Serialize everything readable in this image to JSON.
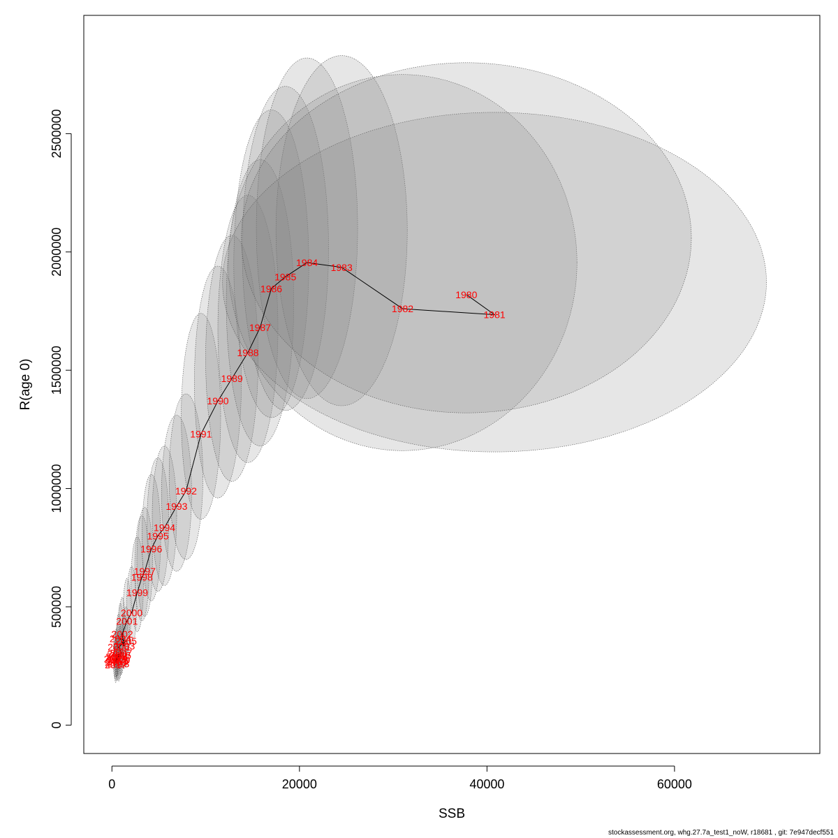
{
  "footer": "stockassessment.org, whg.27.7a_test1_noW, r18681 , git: 7e947decf551",
  "chart_data": {
    "type": "scatter",
    "title": "",
    "xlabel": "SSB",
    "ylabel": "R(age 0)",
    "xlim": [
      -3000,
      75500
    ],
    "ylim": [
      -120000,
      3000000
    ],
    "xticks": [
      0,
      20000,
      40000,
      60000
    ],
    "yticks": [
      0,
      500000,
      1000000,
      1500000,
      2000000,
      2500000
    ],
    "grid": false,
    "line_color": "#000000",
    "label_color": "#ff0000",
    "ellipse_fill": "#808080",
    "points": [
      {
        "year": "1980",
        "ssb": 37800,
        "r": 1820000,
        "sd_ssb": 12000,
        "r_lo": 1320000,
        "r_hi": 2800000
      },
      {
        "year": "1981",
        "ssb": 40800,
        "r": 1735000,
        "sd_ssb": 14500,
        "r_lo": 1155000,
        "r_hi": 2590000
      },
      {
        "year": "1982",
        "ssb": 31000,
        "r": 1760000,
        "sd_ssb": 9300,
        "r_lo": 1160000,
        "r_hi": 2750000
      },
      {
        "year": "1983",
        "ssb": 24500,
        "r": 1935000,
        "sd_ssb": 3500,
        "r_lo": 1350000,
        "r_hi": 2830000
      },
      {
        "year": "1984",
        "ssb": 20800,
        "r": 1955000,
        "sd_ssb": 2700,
        "r_lo": 1380000,
        "r_hi": 2820000
      },
      {
        "year": "1985",
        "ssb": 18500,
        "r": 1895000,
        "sd_ssb": 2300,
        "r_lo": 1330000,
        "r_hi": 2700000
      },
      {
        "year": "1986",
        "ssb": 17000,
        "r": 1845000,
        "sd_ssb": 2000,
        "r_lo": 1300000,
        "r_hi": 2600000
      },
      {
        "year": "1987",
        "ssb": 15800,
        "r": 1680000,
        "sd_ssb": 1800,
        "r_lo": 1180000,
        "r_hi": 2390000
      },
      {
        "year": "1988",
        "ssb": 14500,
        "r": 1575000,
        "sd_ssb": 1600,
        "r_lo": 1110000,
        "r_hi": 2240000
      },
      {
        "year": "1989",
        "ssb": 12800,
        "r": 1465000,
        "sd_ssb": 1400,
        "r_lo": 1030000,
        "r_hi": 2070000
      },
      {
        "year": "1990",
        "ssb": 11300,
        "r": 1370000,
        "sd_ssb": 1250,
        "r_lo": 960000,
        "r_hi": 1940000
      },
      {
        "year": "1991",
        "ssb": 9500,
        "r": 1230000,
        "sd_ssb": 1050,
        "r_lo": 870000,
        "r_hi": 1740000
      },
      {
        "year": "1992",
        "ssb": 7900,
        "r": 990000,
        "sd_ssb": 900,
        "r_lo": 700000,
        "r_hi": 1400000
      },
      {
        "year": "1993",
        "ssb": 6900,
        "r": 925000,
        "sd_ssb": 800,
        "r_lo": 650000,
        "r_hi": 1310000
      },
      {
        "year": "1994",
        "ssb": 5600,
        "r": 835000,
        "sd_ssb": 650,
        "r_lo": 590000,
        "r_hi": 1180000
      },
      {
        "year": "1995",
        "ssb": 4900,
        "r": 800000,
        "sd_ssb": 580,
        "r_lo": 565000,
        "r_hi": 1130000
      },
      {
        "year": "1996",
        "ssb": 4200,
        "r": 745000,
        "sd_ssb": 500,
        "r_lo": 525000,
        "r_hi": 1060000
      },
      {
        "year": "1997",
        "ssb": 3500,
        "r": 650000,
        "sd_ssb": 420,
        "r_lo": 460000,
        "r_hi": 920000
      },
      {
        "year": "1998",
        "ssb": 3200,
        "r": 625000,
        "sd_ssb": 380,
        "r_lo": 440000,
        "r_hi": 885000
      },
      {
        "year": "1999",
        "ssb": 2700,
        "r": 560000,
        "sd_ssb": 330,
        "r_lo": 395000,
        "r_hi": 795000
      },
      {
        "year": "2000",
        "ssb": 2100,
        "r": 475000,
        "sd_ssb": 260,
        "r_lo": 335000,
        "r_hi": 670000
      },
      {
        "year": "2001",
        "ssb": 1600,
        "r": 440000,
        "sd_ssb": 210,
        "r_lo": 310000,
        "r_hi": 620000
      },
      {
        "year": "2002",
        "ssb": 1100,
        "r": 385000,
        "sd_ssb": 160,
        "r_lo": 275000,
        "r_hi": 540000
      },
      {
        "year": "2003",
        "ssb": 1300,
        "r": 335000,
        "sd_ssb": 170,
        "r_lo": 240000,
        "r_hi": 470000
      },
      {
        "year": "2004",
        "ssb": 900,
        "r": 365000,
        "sd_ssb": 140,
        "r_lo": 260000,
        "r_hi": 515000
      },
      {
        "year": "2005",
        "ssb": 1500,
        "r": 355000,
        "sd_ssb": 190,
        "r_lo": 250000,
        "r_hi": 500000
      },
      {
        "year": "2006",
        "ssb": 700,
        "r": 330000,
        "sd_ssb": 120,
        "r_lo": 235000,
        "r_hi": 470000
      },
      {
        "year": "2007",
        "ssb": 1000,
        "r": 305000,
        "sd_ssb": 140,
        "r_lo": 215000,
        "r_hi": 430000
      },
      {
        "year": "2008",
        "ssb": 500,
        "r": 290000,
        "sd_ssb": 100,
        "r_lo": 205000,
        "r_hi": 410000
      },
      {
        "year": "2009",
        "ssb": 800,
        "r": 275000,
        "sd_ssb": 120,
        "r_lo": 195000,
        "r_hi": 390000
      },
      {
        "year": "2010",
        "ssb": 400,
        "r": 265000,
        "sd_ssb": 90,
        "r_lo": 190000,
        "r_hi": 375000
      },
      {
        "year": "2011",
        "ssb": 600,
        "r": 300000,
        "sd_ssb": 100,
        "r_lo": 210000,
        "r_hi": 425000
      },
      {
        "year": "2012",
        "ssb": 300,
        "r": 280000,
        "sd_ssb": 80,
        "r_lo": 200000,
        "r_hi": 395000
      },
      {
        "year": "2013",
        "ssb": 700,
        "r": 260000,
        "sd_ssb": 110,
        "r_lo": 185000,
        "r_hi": 370000
      },
      {
        "year": "2014",
        "ssb": 500,
        "r": 285000,
        "sd_ssb": 90,
        "r_lo": 200000,
        "r_hi": 400000
      },
      {
        "year": "2015",
        "ssb": 900,
        "r": 295000,
        "sd_ssb": 130,
        "r_lo": 210000,
        "r_hi": 420000
      },
      {
        "year": "2016",
        "ssb": 600,
        "r": 270000,
        "sd_ssb": 100,
        "r_lo": 190000,
        "r_hi": 380000
      },
      {
        "year": "2017",
        "ssb": 400,
        "r": 255000,
        "sd_ssb": 80,
        "r_lo": 180000,
        "r_hi": 360000
      }
    ]
  }
}
